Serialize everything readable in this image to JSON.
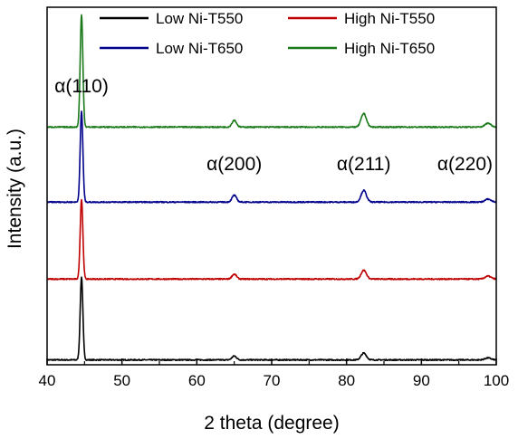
{
  "chart_data": {
    "type": "line",
    "title": "",
    "xlabel": "2 theta (degree)",
    "ylabel": "Intensity (a.u.)",
    "xlim": [
      40,
      100
    ],
    "xticks": [
      40,
      50,
      60,
      70,
      80,
      90,
      100
    ],
    "yticks_shown": false,
    "grid": false,
    "legend_position": "top",
    "legend_columns": 2,
    "stacking": "offset",
    "annotations": [
      {
        "text": "α(110)",
        "x": 44.6
      },
      {
        "text": "α(200)",
        "x": 65.0
      },
      {
        "text": "α(211)",
        "x": 82.3
      },
      {
        "text": "α(220)",
        "x": 98.9
      }
    ],
    "series": [
      {
        "name": "Low Ni-T550",
        "color": "#000000",
        "baseline": 0.0,
        "peaks": [
          {
            "x": 44.6,
            "height": 0.85,
            "width": 0.18
          },
          {
            "x": 65.0,
            "height": 0.04,
            "width": 0.3
          },
          {
            "x": 82.3,
            "height": 0.07,
            "width": 0.35
          },
          {
            "x": 98.9,
            "height": 0.02,
            "width": 0.4
          }
        ]
      },
      {
        "name": "High Ni-T550",
        "color": "#c00000",
        "baseline": 0.83,
        "peaks": [
          {
            "x": 44.6,
            "height": 0.82,
            "width": 0.18
          },
          {
            "x": 65.0,
            "height": 0.05,
            "width": 0.3
          },
          {
            "x": 82.3,
            "height": 0.09,
            "width": 0.35
          },
          {
            "x": 98.9,
            "height": 0.03,
            "width": 0.4
          }
        ]
      },
      {
        "name": "Low Ni-T650",
        "color": "#00008b",
        "baseline": 1.62,
        "peaks": [
          {
            "x": 44.6,
            "height": 0.93,
            "width": 0.18
          },
          {
            "x": 65.0,
            "height": 0.07,
            "width": 0.3
          },
          {
            "x": 82.3,
            "height": 0.12,
            "width": 0.35
          },
          {
            "x": 98.9,
            "height": 0.03,
            "width": 0.4
          }
        ]
      },
      {
        "name": "High Ni-T650",
        "color": "#1a7a1a",
        "baseline": 2.39,
        "peaks": [
          {
            "x": 44.6,
            "height": 1.15,
            "width": 0.18
          },
          {
            "x": 65.0,
            "height": 0.07,
            "width": 0.3
          },
          {
            "x": 82.3,
            "height": 0.14,
            "width": 0.35
          },
          {
            "x": 98.9,
            "height": 0.04,
            "width": 0.4
          }
        ]
      }
    ]
  }
}
